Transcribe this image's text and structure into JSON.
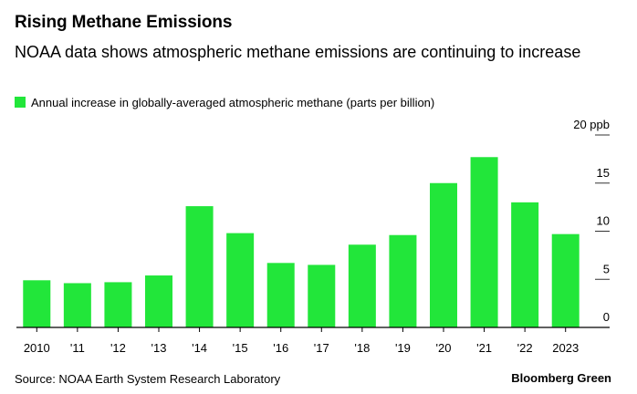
{
  "colors": {
    "bar": "#22e63a",
    "axis": "#000000",
    "grid": "#333333"
  },
  "chart_data": {
    "type": "bar",
    "title": "Rising Methane Emissions",
    "subtitle": "NOAA data shows atmospheric methane emissions are continuing to increase",
    "legend": [
      "Annual increase in globally-averaged atmospheric methane (parts per billion)"
    ],
    "categories": [
      "2010",
      "'11",
      "'12",
      "'13",
      "'14",
      "'15",
      "'16",
      "'17",
      "'18",
      "'19",
      "'20",
      "'21",
      "'22",
      "2023"
    ],
    "values": [
      4.9,
      4.6,
      4.7,
      5.4,
      12.6,
      9.8,
      6.7,
      6.5,
      8.6,
      9.6,
      15.0,
      17.7,
      13.0,
      9.7
    ],
    "ylim": [
      0,
      20
    ],
    "yticks": [
      0,
      5,
      10,
      15,
      20
    ],
    "ytick_labels": [
      "0",
      "5",
      "10",
      "15",
      "20 ppb"
    ],
    "xlabel": "",
    "ylabel": "",
    "legend_position": "top-left"
  },
  "footer": {
    "source": "Source: NOAA Earth System Research Laboratory",
    "brand": "Bloomberg Green"
  }
}
